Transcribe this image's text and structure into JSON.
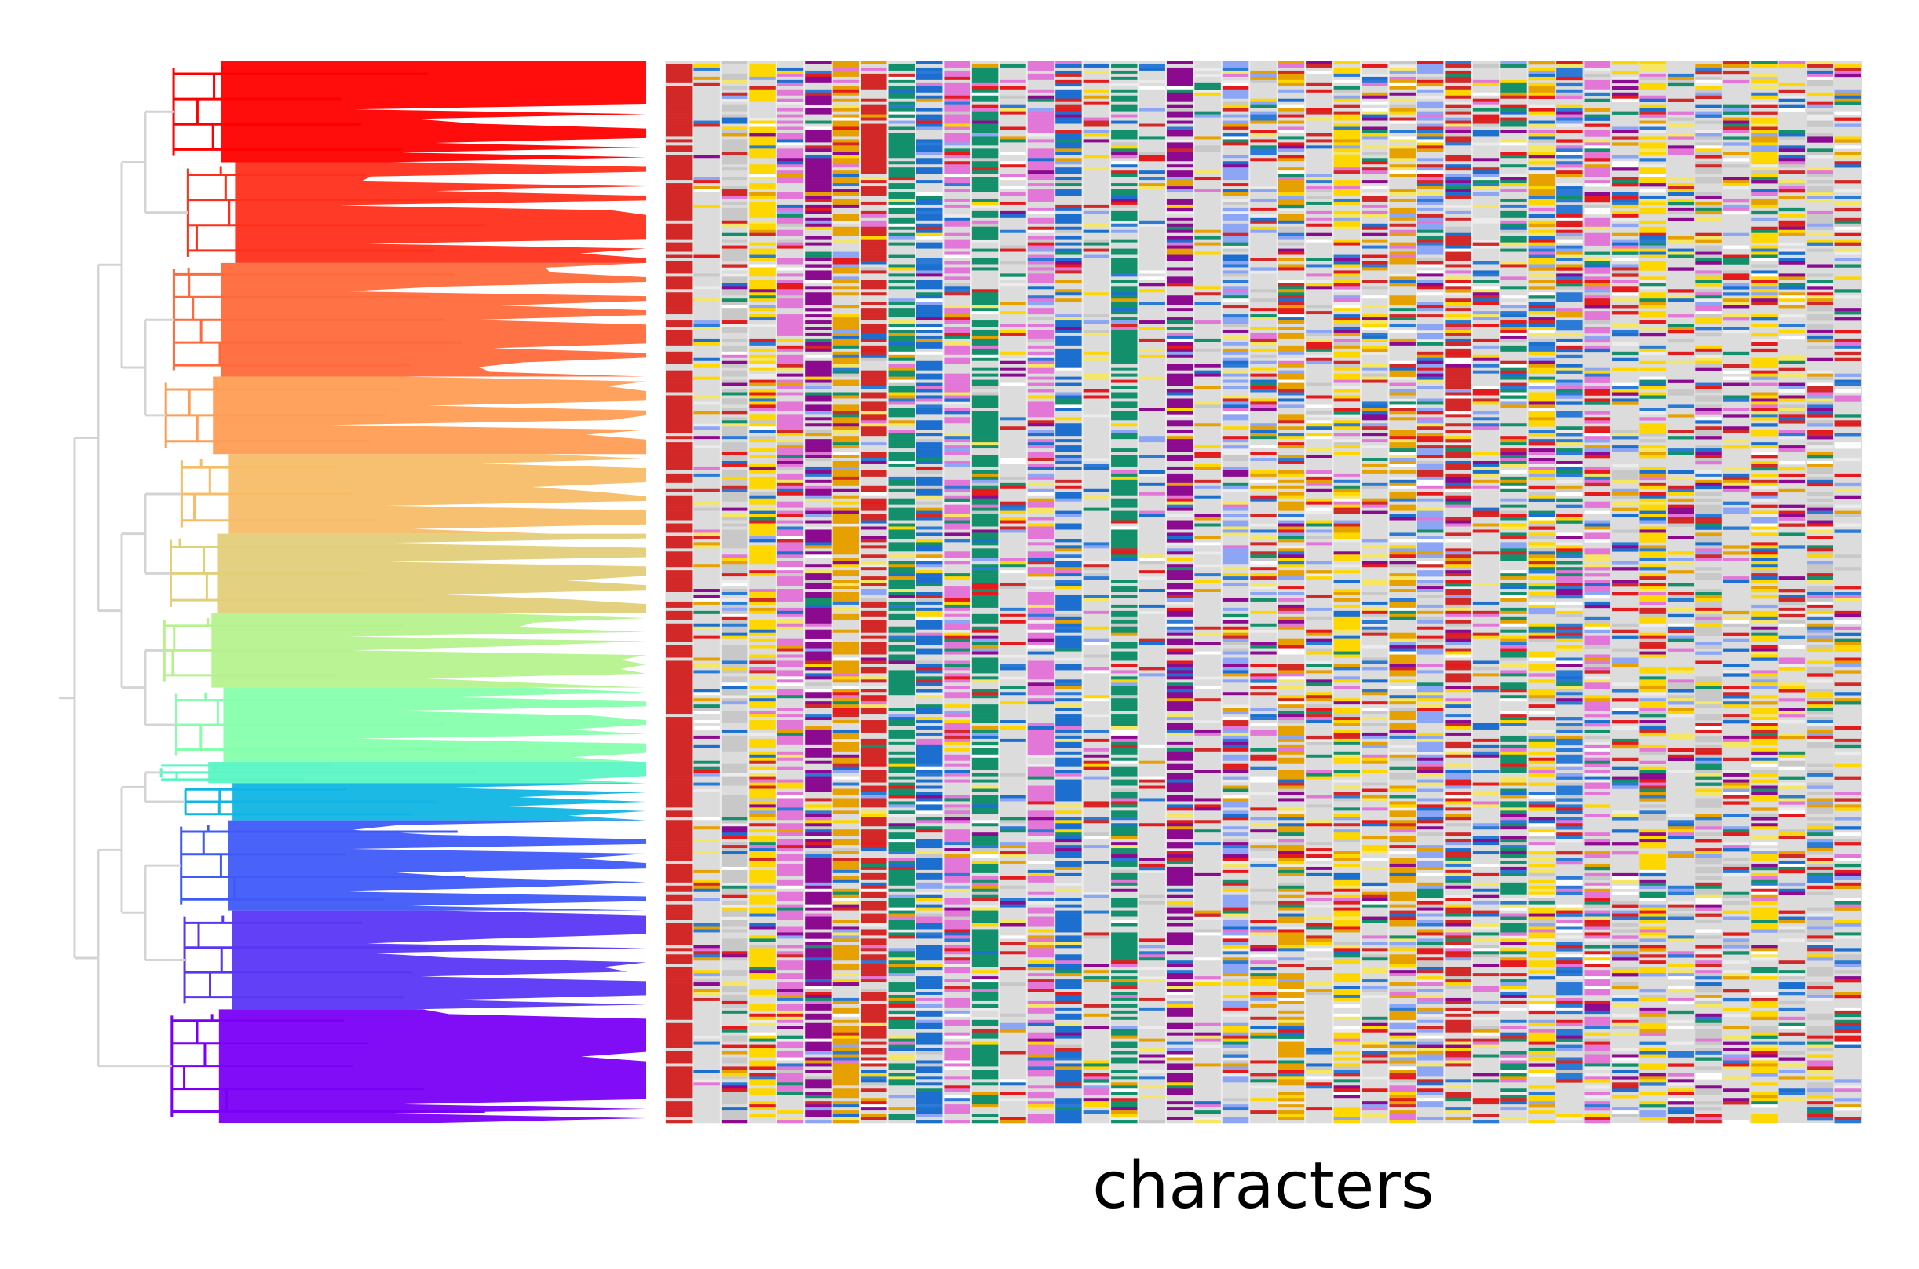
{
  "chart_data": {
    "type": "heatmap",
    "title": "",
    "xlabel": "characters",
    "ylabel": "",
    "grid": false,
    "legend": "none",
    "row_count": 340,
    "column_count": 43,
    "state_colors": [
      "#e41a1c",
      "#d32828",
      "#8b0a8f",
      "#e377d8",
      "#ffd700",
      "#f5e663",
      "#e6a100",
      "#13906b",
      "#2b7bd6",
      "#1c6fcf",
      "#8ca6f5",
      "#c8c8c8",
      "#dcdcdc",
      "#ececec",
      "#ffffff"
    ],
    "dominant_column_colors": [
      "#d32828",
      "#dcdcdc",
      "#c8c8c8",
      "#ffd700",
      "#e377d8",
      "#8b0a8f",
      "#e6a100",
      "#d32828",
      "#13906b",
      "#1c6fcf",
      "#e377d8",
      "#13906b",
      "#dcdcdc",
      "#e377d8",
      "#1c6fcf",
      "#dcdcdc",
      "#13906b",
      "#dcdcdc",
      "#8b0a8f",
      "#dcdcdc",
      "#8ca6f5",
      "#dcdcdc",
      "#e6a100",
      "#dcdcdc",
      "#ffd700",
      "#dcdcdc",
      "#e6a100",
      "#8ca6f5",
      "#d32828",
      "#dcdcdc",
      "#13906b",
      "#ffd700",
      "#2b7bd6",
      "#e377d8",
      "#dcdcdc",
      "#ffd700",
      "#dcdcdc",
      "#c8c8c8",
      "#dcdcdc",
      "#ffd700",
      "#dcdcdc",
      "#c8c8c8",
      "#dcdcdc"
    ],
    "clade_colors": [
      "#ff0000",
      "#ff2f1a",
      "#ff6a3c",
      "#ff9d55",
      "#f7bc68",
      "#e2cf7a",
      "#b5f28e",
      "#86ffac",
      "#5bf5c3",
      "#10b5e4",
      "#3f5af7",
      "#5836f5",
      "#7a00f5"
    ],
    "clade_row_fractions": [
      0.0,
      0.095,
      0.19,
      0.297,
      0.37,
      0.445,
      0.52,
      0.59,
      0.66,
      0.68,
      0.715,
      0.8,
      0.893,
      1.0
    ],
    "tree_inner_color": "#d4d4d4"
  }
}
